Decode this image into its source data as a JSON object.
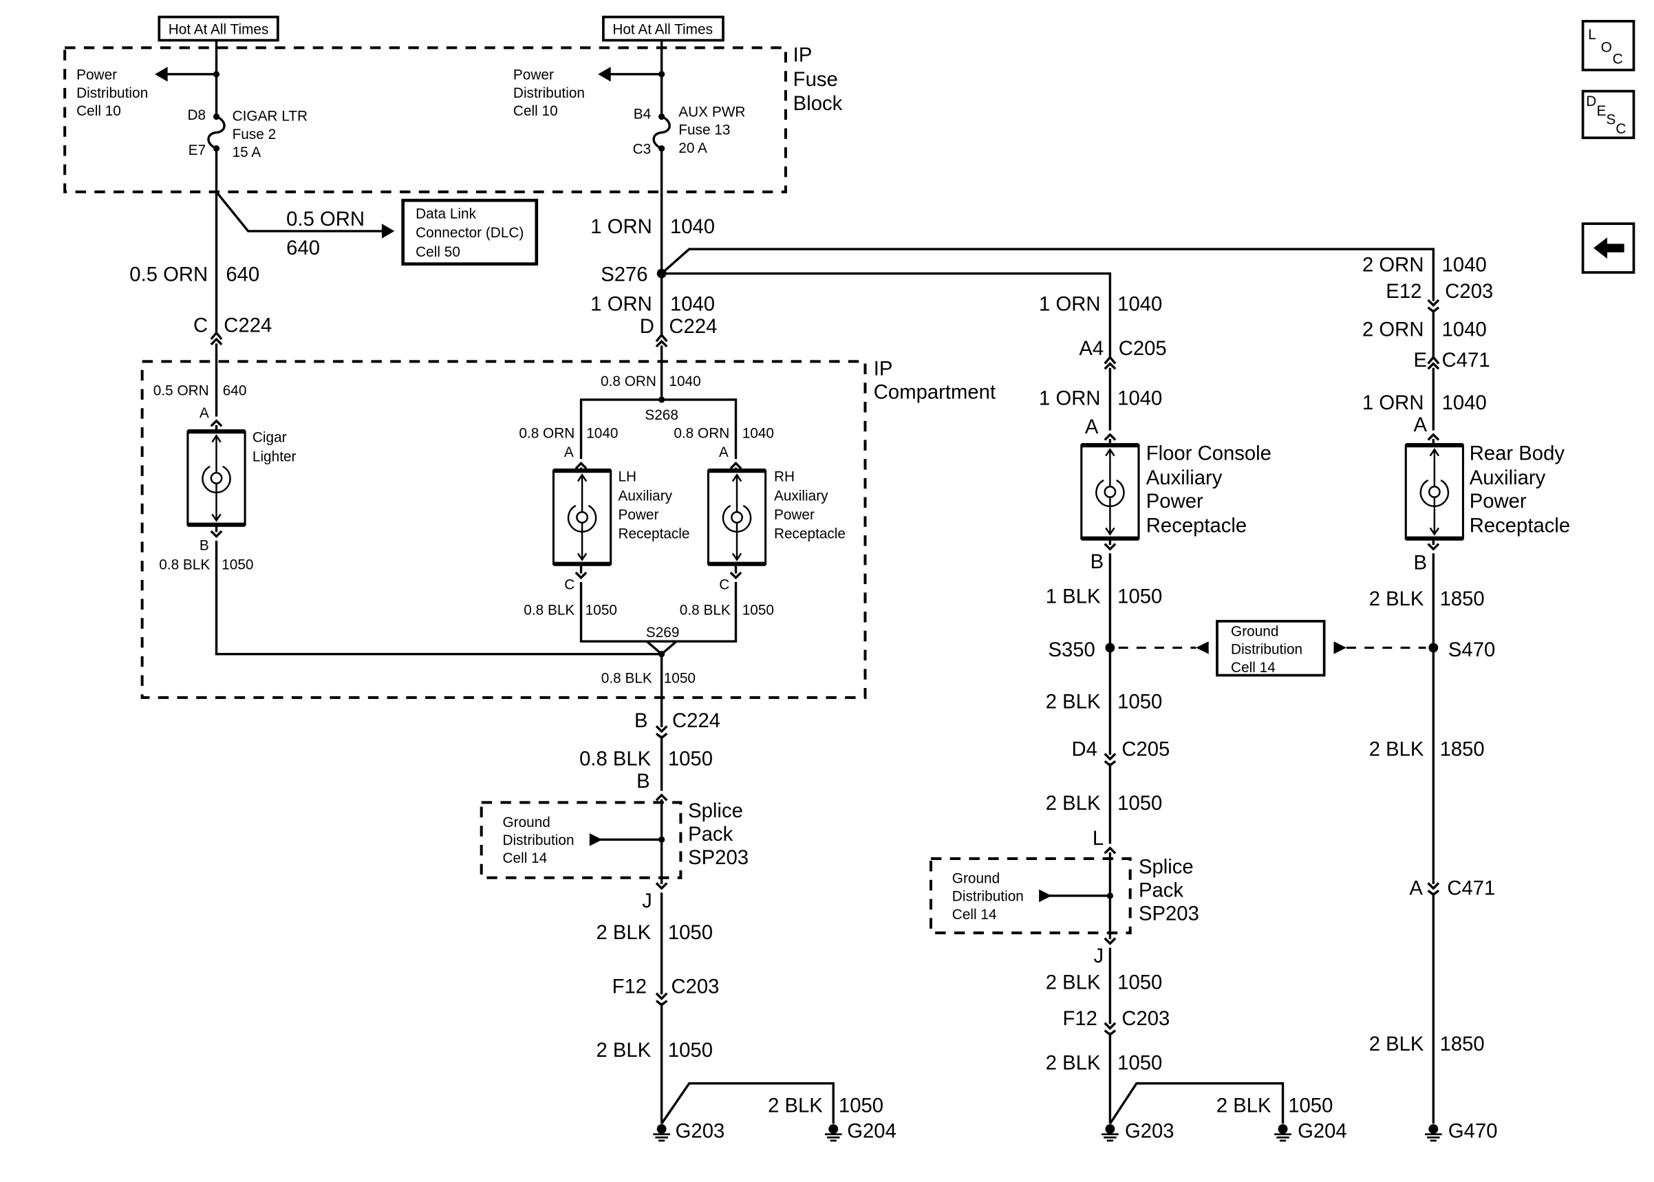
{
  "fuse_block": {
    "hot_left": "Hot At All Times",
    "hot_right": "Hot At All Times",
    "title": [
      "IP",
      "Fuse",
      "Block"
    ],
    "power_dist_left": [
      "Power",
      "Distribution",
      "Cell 10"
    ],
    "power_dist_right": [
      "Power",
      "Distribution",
      "Cell 10"
    ],
    "fuse_cigar": {
      "in": "D8",
      "out": "E7",
      "lines": [
        "CIGAR LTR",
        "Fuse 2",
        "15 A"
      ]
    },
    "fuse_aux": {
      "in": "B4",
      "out": "C3",
      "lines": [
        "AUX PWR",
        "Fuse 13",
        "20 A"
      ]
    }
  },
  "dlc": {
    "wire": [
      "0.5 ORN",
      "640"
    ],
    "box": [
      "Data Link",
      "Connector (DLC)",
      "Cell 50"
    ]
  },
  "left_circuit": {
    "w1": [
      "0.5 ORN",
      "640"
    ],
    "conn": [
      "C",
      "C224"
    ],
    "w2": [
      "0.5 ORN",
      "640"
    ],
    "pin_a": "A",
    "device": [
      "Cigar",
      "Lighter"
    ],
    "pin_b": "B",
    "w3": [
      "0.8 BLK",
      "1050"
    ]
  },
  "ip_compartment": {
    "title": [
      "IP",
      "Compartment"
    ]
  },
  "center_circuit": {
    "w1": [
      "1 ORN",
      "1040"
    ],
    "s276": "S276",
    "w2": [
      "1 ORN",
      "1040"
    ],
    "conn1": [
      "D",
      "C224"
    ],
    "w3": [
      "0.8 ORN",
      "1040"
    ],
    "s268": "S268",
    "lh_w": [
      "0.8 ORN",
      "1040"
    ],
    "rh_w": [
      "0.8 ORN",
      "1040"
    ],
    "lh_pin_a": "A",
    "rh_pin_a": "A",
    "lh_device": [
      "LH",
      "Auxiliary",
      "Power",
      "Receptacle"
    ],
    "rh_device": [
      "RH",
      "Auxiliary",
      "Power",
      "Receptacle"
    ],
    "lh_pin_c": "C",
    "rh_pin_c": "C",
    "lh_gnd": [
      "0.8 BLK",
      "1050"
    ],
    "rh_gnd": [
      "0.8 BLK",
      "1050"
    ],
    "s269": "S269",
    "w4": [
      "0.8 BLK",
      "1050"
    ],
    "conn2": [
      "B",
      "C224"
    ],
    "w5": [
      "0.8 BLK",
      "1050"
    ],
    "pin_b": "B",
    "splice_ground": [
      "Ground",
      "Distribution",
      "Cell 14"
    ],
    "splice": [
      "Splice",
      "Pack",
      "SP203"
    ],
    "pin_j": "J",
    "w6": [
      "2 BLK",
      "1050"
    ],
    "conn3": [
      "F12",
      "C203"
    ],
    "w7": [
      "2 BLK",
      "1050"
    ],
    "w8": [
      "2 BLK",
      "1050"
    ],
    "g1": "G203",
    "g2": "G204"
  },
  "floor_circuit": {
    "w1": [
      "1 ORN",
      "1040"
    ],
    "conn1": [
      "A4",
      "C205"
    ],
    "w2": [
      "1 ORN",
      "1040"
    ],
    "pin_a": "A",
    "device": [
      "Floor Console",
      "Auxiliary",
      "Power",
      "Receptacle"
    ],
    "pin_b": "B",
    "w3": [
      "1 BLK",
      "1050"
    ],
    "s350": "S350",
    "ground_box": [
      "Ground",
      "Distribution",
      "Cell 14"
    ],
    "w4": [
      "2 BLK",
      "1050"
    ],
    "conn2": [
      "D4",
      "C205"
    ],
    "w5": [
      "2 BLK",
      "1050"
    ],
    "pin_l": "L",
    "splice_ground": [
      "Ground",
      "Distribution",
      "Cell 14"
    ],
    "splice": [
      "Splice",
      "Pack",
      "SP203"
    ],
    "pin_j": "J",
    "w6": [
      "2 BLK",
      "1050"
    ],
    "conn3": [
      "F12",
      "C203"
    ],
    "w7": [
      "2 BLK",
      "1050"
    ],
    "w8": [
      "2 BLK",
      "1050"
    ],
    "g1": "G203",
    "g2": "G204"
  },
  "rear_circuit": {
    "w1": [
      "2 ORN",
      "1040"
    ],
    "conn1": [
      "E12",
      "C203"
    ],
    "w2": [
      "2 ORN",
      "1040"
    ],
    "conn2": [
      "E",
      "C471"
    ],
    "w3": [
      "1 ORN",
      "1040"
    ],
    "pin_a": "A",
    "device": [
      "Rear Body",
      "Auxiliary",
      "Power",
      "Receptacle"
    ],
    "pin_b": "B",
    "w4": [
      "2 BLK",
      "1850"
    ],
    "s470": "S470",
    "w5": [
      "2 BLK",
      "1850"
    ],
    "conn3": [
      "A",
      "C471"
    ],
    "w6": [
      "2 BLK",
      "1850"
    ],
    "g": "G470"
  },
  "nav": {
    "loc": [
      "L",
      "O",
      "C"
    ],
    "desc": [
      "D",
      "E",
      "S",
      "C"
    ],
    "back_icon": "left-arrow-icon"
  }
}
